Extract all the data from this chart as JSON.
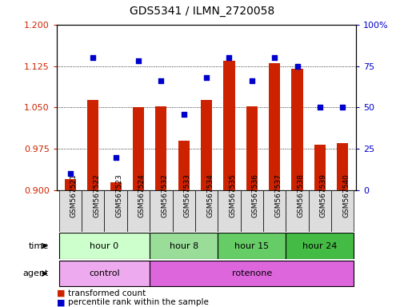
{
  "title": "GDS5341 / ILMN_2720058",
  "samples": [
    "GSM567521",
    "GSM567522",
    "GSM567523",
    "GSM567524",
    "GSM567532",
    "GSM567533",
    "GSM567534",
    "GSM567535",
    "GSM567536",
    "GSM567537",
    "GSM567538",
    "GSM567539",
    "GSM567540"
  ],
  "transformed_count": [
    0.92,
    1.063,
    0.915,
    1.05,
    1.052,
    0.99,
    1.063,
    1.135,
    1.052,
    1.13,
    1.12,
    0.983,
    0.985
  ],
  "percentile_rank": [
    10,
    80,
    20,
    78,
    66,
    46,
    68,
    80,
    66,
    80,
    75,
    50,
    50
  ],
  "left_ylim": [
    0.9,
    1.2
  ],
  "right_ylim": [
    0,
    100
  ],
  "left_yticks": [
    0.9,
    0.975,
    1.05,
    1.125,
    1.2
  ],
  "right_yticks": [
    0,
    25,
    50,
    75,
    100
  ],
  "right_yticklabels": [
    "0",
    "25",
    "50",
    "75",
    "100%"
  ],
  "bar_color": "#cc2200",
  "dot_color": "#0000cc",
  "bar_width": 0.5,
  "time_groups": [
    {
      "label": "hour 0",
      "start": 0,
      "end": 4,
      "color": "#ccffcc"
    },
    {
      "label": "hour 8",
      "start": 4,
      "end": 7,
      "color": "#99dd99"
    },
    {
      "label": "hour 15",
      "start": 7,
      "end": 10,
      "color": "#66cc66"
    },
    {
      "label": "hour 24",
      "start": 10,
      "end": 13,
      "color": "#44bb44"
    }
  ],
  "agent_groups": [
    {
      "label": "control",
      "start": 0,
      "end": 4,
      "color": "#eeaaee"
    },
    {
      "label": "rotenone",
      "start": 4,
      "end": 13,
      "color": "#dd66dd"
    }
  ],
  "legend_items": [
    {
      "color": "#cc2200",
      "label": "transformed count"
    },
    {
      "color": "#0000cc",
      "label": "percentile rank within the sample"
    }
  ],
  "time_label": "time",
  "agent_label": "agent",
  "bg_color": "#ffffff",
  "tick_label_color_left": "#cc2200",
  "tick_label_color_right": "#0000cc",
  "xtick_bg": "#dddddd"
}
